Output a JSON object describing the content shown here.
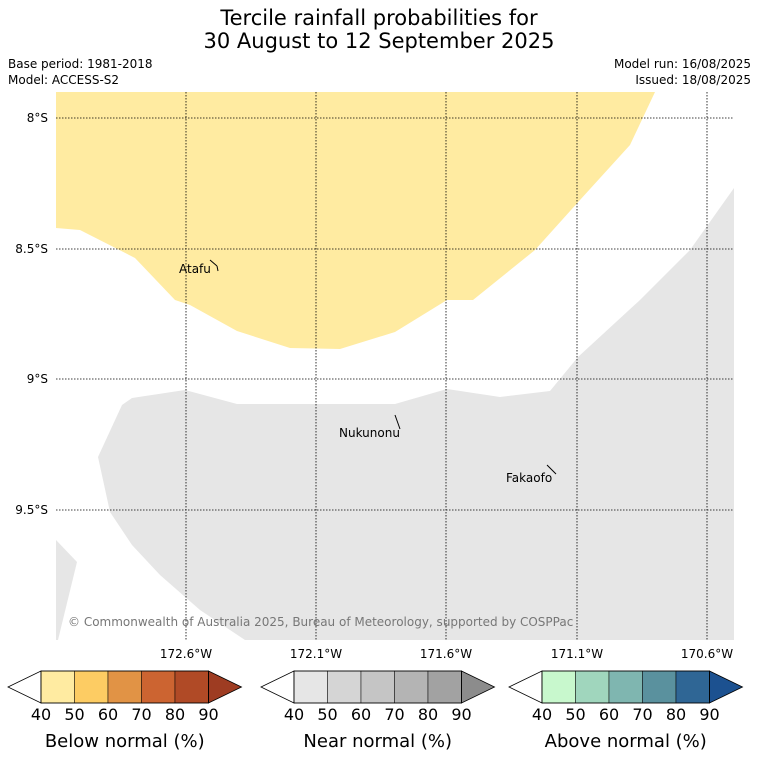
{
  "title": {
    "line1": "Tercile rainfall probabilities for",
    "line2": "30 August to 12 September 2025"
  },
  "meta": {
    "base_period": "Base period: 1981-2018",
    "model": "Model: ACCESS-S2",
    "model_run": "Model run: 16/08/2025",
    "issued": "Issued: 18/08/2025"
  },
  "map": {
    "lat_labels": [
      "8°S",
      "8.5°S",
      "9°S",
      "9.5°S"
    ],
    "lon_labels": [
      "172.6°W",
      "172.1°W",
      "171.6°W",
      "171.1°W",
      "170.6°W"
    ],
    "places": [
      "Atafu",
      "Nukunonu",
      "Fakaofo"
    ],
    "copyright": "© Commonwealth of Australia 2025, Bureau of Meteorology, supported by COSPPac",
    "colors": {
      "below_normal_40_50": "#ffeba1",
      "near_normal_40_50": "#e6e6e6"
    }
  },
  "legends": [
    {
      "name": "Below normal (%)",
      "ticks": [
        "40",
        "50",
        "60",
        "70",
        "80",
        "90"
      ],
      "colors": [
        "#ffeba1",
        "#fdcc63",
        "#e19345",
        "#cc6431",
        "#b04a26",
        "#9e3c22"
      ]
    },
    {
      "name": "Near normal (%)",
      "ticks": [
        "40",
        "50",
        "60",
        "70",
        "80",
        "90"
      ],
      "colors": [
        "#e6e6e6",
        "#d5d5d5",
        "#c5c5c5",
        "#b4b4b4",
        "#a2a2a2",
        "#8c8c8c"
      ]
    },
    {
      "name": "Above normal (%)",
      "ticks": [
        "40",
        "50",
        "60",
        "70",
        "80",
        "90"
      ],
      "colors": [
        "#c8f8cd",
        "#a0d6bd",
        "#7fb6b0",
        "#5a919e",
        "#2f6695",
        "#1c5190"
      ]
    }
  ]
}
